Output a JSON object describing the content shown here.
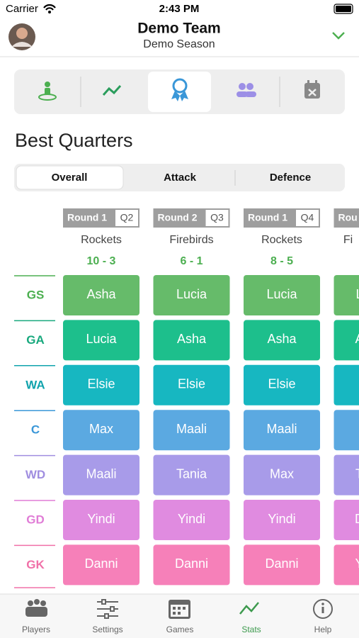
{
  "status_bar": {
    "carrier": "Carrier",
    "time": "2:43 PM"
  },
  "header": {
    "title": "Demo Team",
    "subtitle": "Demo Season"
  },
  "section_title": "Best Quarters",
  "segments": [
    "Overall",
    "Attack",
    "Defence"
  ],
  "positions": [
    "GS",
    "GA",
    "WA",
    "C",
    "WD",
    "GD",
    "GK"
  ],
  "columns": [
    {
      "round": "Round 1",
      "quarter": "Q2",
      "opponent": "Rockets",
      "score": "10 - 3",
      "players": [
        "Asha",
        "Lucia",
        "Elsie",
        "Max",
        "Maali",
        "Yindi",
        "Danni"
      ]
    },
    {
      "round": "Round 2",
      "quarter": "Q3",
      "opponent": "Firebirds",
      "score": "6 - 1",
      "players": [
        "Lucia",
        "Asha",
        "Elsie",
        "Maali",
        "Tania",
        "Yindi",
        "Danni"
      ]
    },
    {
      "round": "Round 1",
      "quarter": "Q4",
      "opponent": "Rockets",
      "score": "8 - 5",
      "players": [
        "Lucia",
        "Asha",
        "Elsie",
        "Maali",
        "Max",
        "Yindi",
        "Danni"
      ]
    },
    {
      "round": "Rou",
      "opponent": "Fi",
      "players": [
        "L",
        "A",
        null,
        null,
        "T",
        "D",
        "Y"
      ]
    }
  ],
  "tabs": [
    "Players",
    "Settings",
    "Games",
    "Stats",
    "Help"
  ]
}
